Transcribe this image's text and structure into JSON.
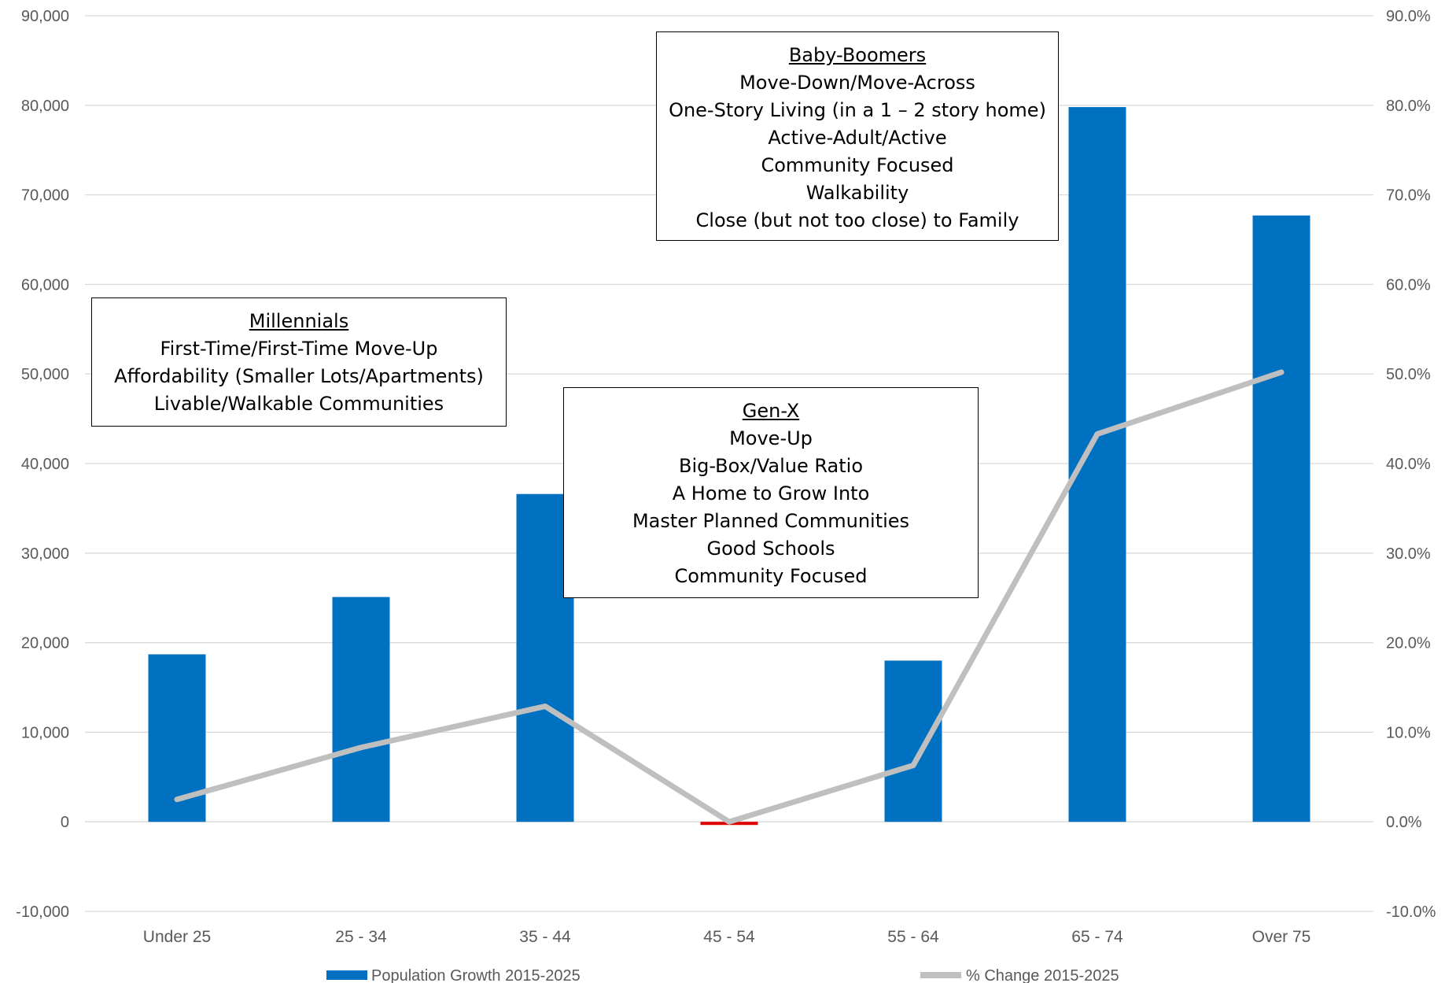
{
  "chart_data": {
    "type": "bar",
    "categories": [
      "Under 25",
      "25 - 34",
      "35 - 44",
      "45 - 54",
      "55 - 64",
      "65 - 74",
      "Over 75"
    ],
    "series": [
      {
        "name": "Population Growth 2015-2025",
        "kind": "bar",
        "axis": "left",
        "values": [
          18700,
          25100,
          36600,
          -300,
          18000,
          79800,
          67700
        ],
        "color": "#0070C0",
        "negative_color": "#E00000"
      },
      {
        "name": "% Change 2015-2025",
        "kind": "line",
        "axis": "right",
        "values": [
          2.5,
          8.3,
          12.9,
          0.0,
          6.3,
          43.3,
          50.2
        ],
        "color": "#BFBFBF"
      }
    ],
    "y_left": {
      "min": -10000,
      "max": 90000,
      "step": 10000,
      "tick_labels": [
        "-10,000",
        "0",
        "10,000",
        "20,000",
        "30,000",
        "40,000",
        "50,000",
        "60,000",
        "70,000",
        "80,000",
        "90,000"
      ]
    },
    "y_right": {
      "min": -10.0,
      "max": 90.0,
      "step": 10.0,
      "tick_labels": [
        "-10.0%",
        "0.0%",
        "10.0%",
        "20.0%",
        "30.0%",
        "40.0%",
        "50.0%",
        "60.0%",
        "70.0%",
        "80.0%",
        "90.0%"
      ]
    },
    "grid": true,
    "legend_position": "bottom",
    "annotations": [
      {
        "id": "millennials",
        "title": "Millennials",
        "lines": [
          "First-Time/First-Time Move-Up",
          "Affordability (Smaller Lots/Apartments)",
          "Livable/Walkable Communities"
        ]
      },
      {
        "id": "genx",
        "title": "Gen-X",
        "lines": [
          "Move-Up",
          "Big-Box/Value Ratio",
          "A Home to Grow Into",
          "Master Planned Communities",
          "Good Schools",
          "Community Focused"
        ]
      },
      {
        "id": "boomers",
        "title": "Baby-Boomers",
        "lines": [
          "Move-Down/Move-Across",
          "One-Story Living (in a 1 – 2 story home)",
          "Active-Adult/Active",
          "Community Focused",
          "Walkability",
          "Close (but not too close) to Family"
        ]
      }
    ]
  }
}
